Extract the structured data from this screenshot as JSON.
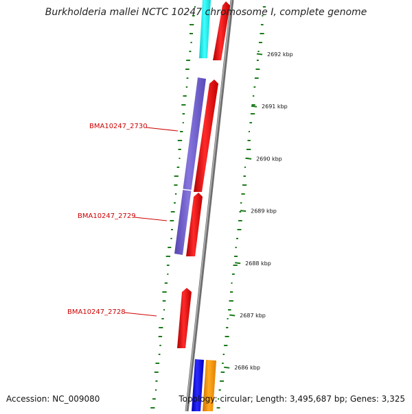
{
  "header": {
    "title": "Burkholderia mallei NCTC 10247 chromosome I, complete genome"
  },
  "footer": {
    "accession": "Accession: NC_009080",
    "summary": "Topology: circular; Length: 3,495,687 bp; Genes: 3,325"
  },
  "genome_map": {
    "ticks": [
      {
        "kbp": 2692,
        "label": "2692 kbp"
      },
      {
        "kbp": 2691,
        "label": "2691 kbp"
      },
      {
        "kbp": 2690,
        "label": "2690 kbp"
      },
      {
        "kbp": 2689,
        "label": "2689 kbp"
      },
      {
        "kbp": 2688,
        "label": "2688 kbp"
      },
      {
        "kbp": 2687,
        "label": "2687 kbp"
      },
      {
        "kbp": 2686,
        "label": "2686 kbp"
      }
    ],
    "gene_labels": [
      {
        "name": "BMA10247_2730"
      },
      {
        "name": "BMA10247_2729"
      },
      {
        "name": "BMA10247_2728"
      }
    ],
    "colors": {
      "backbone": "#8a8a8a",
      "gc_dots": "#1a7a1a",
      "cyan_gene": "#1ee8e8",
      "red_gene": "#ee1111",
      "purple_gene": "#7060c8",
      "blue_gene": "#1a1af0",
      "orange_gene": "#ff9900",
      "label_red": "#cc0000"
    }
  }
}
